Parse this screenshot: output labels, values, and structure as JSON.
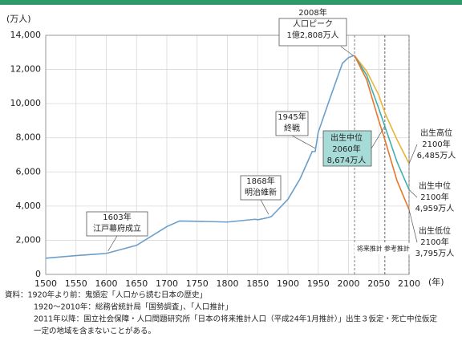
{
  "chart_data": {
    "type": "line",
    "y_label": "(万人)",
    "x_label": "(年)",
    "xlim": [
      1500,
      2100
    ],
    "ylim": [
      0,
      14000
    ],
    "xticks": [
      1500,
      1550,
      1600,
      1650,
      1700,
      1750,
      1800,
      1850,
      1900,
      1950,
      2000,
      2050,
      2100
    ],
    "yticks": [
      0,
      {
        "value": 2000,
        "label": "2,000"
      },
      {
        "value": 4000,
        "label": "4,000"
      },
      {
        "value": 6000,
        "label": "6,000"
      },
      {
        "value": 8000,
        "label": "8,000"
      },
      {
        "value": 10000,
        "label": "10,000"
      },
      {
        "value": 12000,
        "label": "12,000"
      },
      {
        "value": 14000,
        "label": "14,000"
      }
    ],
    "grid": true,
    "series": [
      {
        "color": "#6b9fca",
        "x": [
          1500,
          1550,
          1600,
          1650,
          1700,
          1721,
          1750,
          1800,
          1846,
          1850,
          1868,
          1873,
          1900,
          1920,
          1940,
          1945,
          1950,
          1970,
          1990,
          2000,
          2008,
          2010
        ],
        "values": [
          950,
          1100,
          1227,
          1700,
          2800,
          3128,
          3110,
          3065,
          3230,
          3200,
          3330,
          3400,
          4400,
          5596,
          7193,
          7199,
          8320,
          10372,
          12361,
          12693,
          12808,
          12806
        ]
      },
      {
        "color": "#eab33a",
        "x": [
          2010,
          2030,
          2050,
          2060,
          2080,
          2100
        ],
        "values": [
          12806,
          11900,
          10500,
          9460,
          7900,
          6485
        ]
      },
      {
        "color": "#3fb0b0",
        "x": [
          2010,
          2030,
          2050,
          2060,
          2080,
          2100
        ],
        "values": [
          12806,
          11662,
          9708,
          8674,
          6600,
          4959
        ]
      },
      {
        "color": "#e8772e",
        "x": [
          2010,
          2030,
          2050,
          2060,
          2080,
          2100
        ],
        "values": [
          12806,
          11400,
          9000,
          7900,
          5500,
          3795
        ]
      }
    ],
    "regions": [
      {
        "label": "将来推計",
        "from": 2010,
        "to": 2060
      },
      {
        "label": "参考推計",
        "from": 2060,
        "to": 2100
      }
    ],
    "annotations": [
      [
        "2008年",
        "人口ピーク",
        "1億2,808万人"
      ],
      [
        "1945年",
        "終戦"
      ],
      [
        "1868年",
        "明治維新"
      ],
      [
        "1603年",
        "江戸幕府成立"
      ],
      [
        "出生中位",
        "2060年",
        "8,674万人"
      ],
      [
        "出生高位",
        "2100年",
        "6,485万人"
      ],
      [
        "出生中位",
        "2100年",
        "4,959万人"
      ],
      [
        "出生低位",
        "2100年",
        "3,795万人"
      ]
    ],
    "notes": [
      "資料：1920年より前：鬼頭宏「人口から読む日本の歴史」",
      "1920～2010年：総務省統計局「国勢調査」、「人口推計」",
      "2011年以降：国立社会保障・人口問題研究所「日本の将来推計人口（平成24年1月推計）」出生３仮定・死亡中位仮定",
      "一定の地域を含まないことがある。"
    ]
  }
}
